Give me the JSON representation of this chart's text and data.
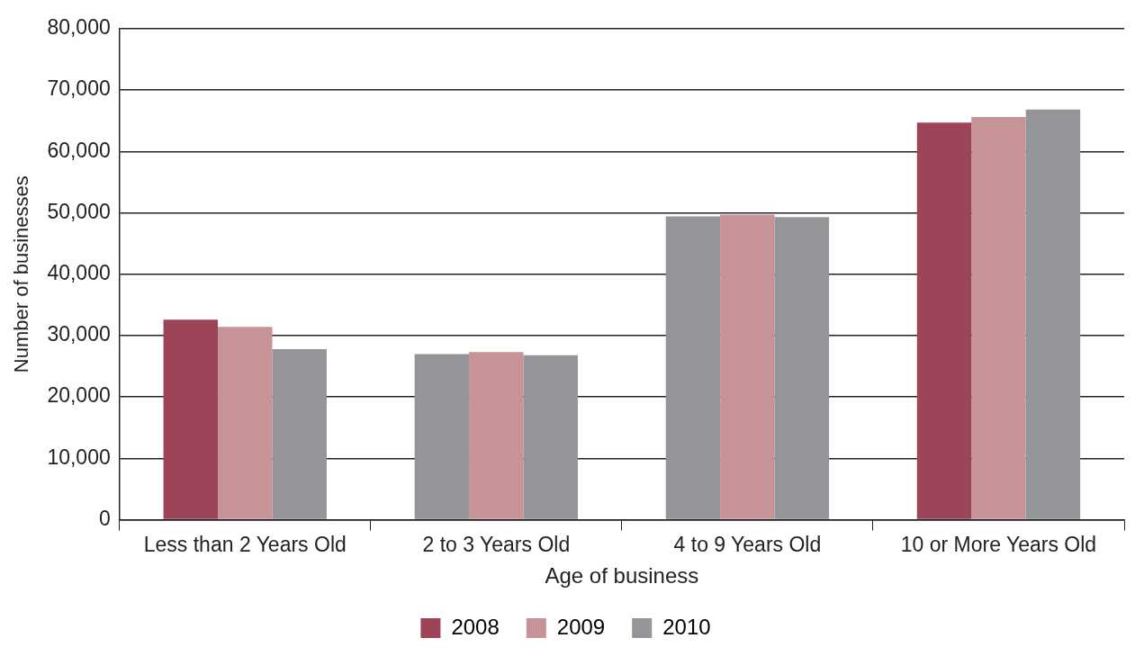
{
  "chart_data": {
    "type": "bar",
    "xlabel": "Age of business",
    "ylabel": "Number of businesses",
    "categories": [
      "Less than 2 Years Old",
      "2 to 3 Years Old",
      "4 to 9 Years Old",
      "10 or More Years Old"
    ],
    "series": [
      {
        "name": "2008",
        "color": "#9e4459",
        "colors": [
          "#9e4459",
          "#949599",
          "#949599",
          "#9e4459"
        ],
        "values": [
          32600,
          27000,
          49400,
          64700
        ]
      },
      {
        "name": "2009",
        "color": "#c69396",
        "values": [
          31400,
          27300,
          49700,
          65600
        ]
      },
      {
        "name": "2010",
        "color": "#949599",
        "values": [
          27800,
          26800,
          49300,
          66800
        ]
      }
    ],
    "ylim": [
      0,
      80000
    ],
    "yticks": [
      {
        "value": 0,
        "label": "0"
      },
      {
        "value": 10000,
        "label": "10,000"
      },
      {
        "value": 20000,
        "label": "20,000"
      },
      {
        "value": 30000,
        "label": "30,000"
      },
      {
        "value": 40000,
        "label": "40,000"
      },
      {
        "value": 50000,
        "label": "50,000"
      },
      {
        "value": 60000,
        "label": "60,000"
      },
      {
        "value": 70000,
        "label": "70,000"
      },
      {
        "value": 80000,
        "label": "80,000"
      }
    ],
    "grid": "y",
    "legend": "bottom"
  }
}
